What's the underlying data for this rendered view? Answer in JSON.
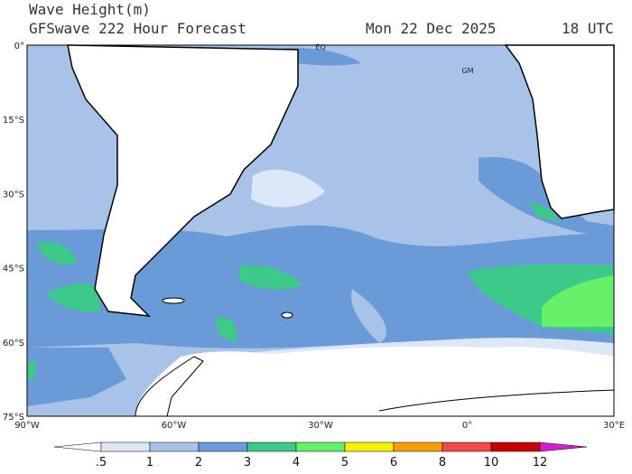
{
  "header": {
    "title": "Wave Height(m)",
    "subtitle": "GFSwave 222 Hour Forecast",
    "date": "Mon 22 Dec 2025",
    "time": "18 UTC"
  },
  "map": {
    "lat_labels": [
      "0°",
      "15°S",
      "30°S",
      "45°S",
      "60°S",
      "75°S"
    ],
    "lon_labels": [
      "90°W",
      "60°W",
      "30°W",
      "0°",
      "30°E"
    ],
    "annotations": [
      "EQ",
      "GM"
    ]
  },
  "colorbar": {
    "levels": [
      {
        "value": 0.5,
        "label": ".5"
      },
      1,
      2,
      3,
      4,
      5,
      6,
      8,
      10,
      12
    ],
    "colors": [
      "#ffffff",
      "#dce8f8",
      "#a9c3e8",
      "#6b9ad8",
      "#3cc98a",
      "#66f06a",
      "#f5f000",
      "#f5a000",
      "#f04a4a",
      "#c80000",
      "#d020d0"
    ]
  }
}
